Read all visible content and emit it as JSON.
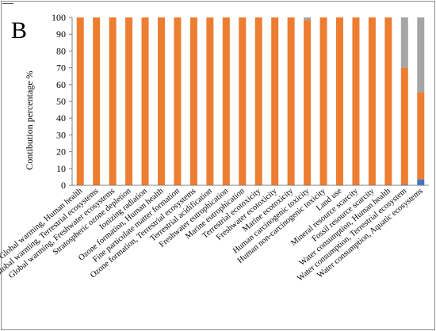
{
  "panel_label": "B",
  "chart_data": {
    "type": "bar",
    "stacked": true,
    "title": "",
    "xlabel": "",
    "ylabel": "Contibution percentage %",
    "ylim": [
      0,
      100
    ],
    "yticks": [
      0,
      10,
      20,
      30,
      40,
      50,
      60,
      70,
      80,
      90,
      100
    ],
    "grid": false,
    "legend": "none",
    "categories": [
      "Global warming, Human health",
      "Global warming, Terrestrial ecosystems",
      "Global warming, Freshwater ecosystems",
      "Stratospheric ozone depletion",
      "Ionizing radiation",
      "Ozone formation, Human health",
      "Fine particulate matter formation",
      "Ozone formation, Terrestrial ecosystems",
      "Terrestrial acidification",
      "Freshwater eutrophication",
      "Marine eutrophication",
      "Terrestrial ecotoxicity",
      "Freshwater ecotoxicity",
      "Marine ecotoxicity",
      "Human carcinogenic toxicity",
      "Human non-carcinogenic toxicity",
      "Land use",
      "Mineral resource scarcity",
      "Fossil resource scarcity",
      "Water consumption, Human health",
      "Water consumption, Terrestrial ecosystem",
      "Water consumption, Aquatic ecosystems"
    ],
    "series": [
      {
        "color": "#4472c4",
        "values": [
          0,
          0,
          0,
          0,
          0,
          0,
          0,
          0,
          0,
          0,
          0,
          0,
          0,
          0,
          0,
          0,
          0,
          0,
          0,
          0,
          0.5,
          3.5
        ]
      },
      {
        "color": "#ed7d31",
        "values": [
          100,
          100,
          100,
          100,
          100,
          100,
          100,
          100,
          100,
          100,
          100,
          100,
          100,
          100,
          98.5,
          100,
          100,
          100,
          100,
          100,
          69.5,
          52
        ]
      },
      {
        "color": "#a5a5a5",
        "values": [
          0,
          0,
          0,
          0,
          0,
          0,
          0,
          0,
          0,
          0,
          0,
          0,
          0,
          0,
          1.5,
          0,
          0,
          0,
          0,
          0,
          30,
          44.5
        ]
      }
    ]
  }
}
